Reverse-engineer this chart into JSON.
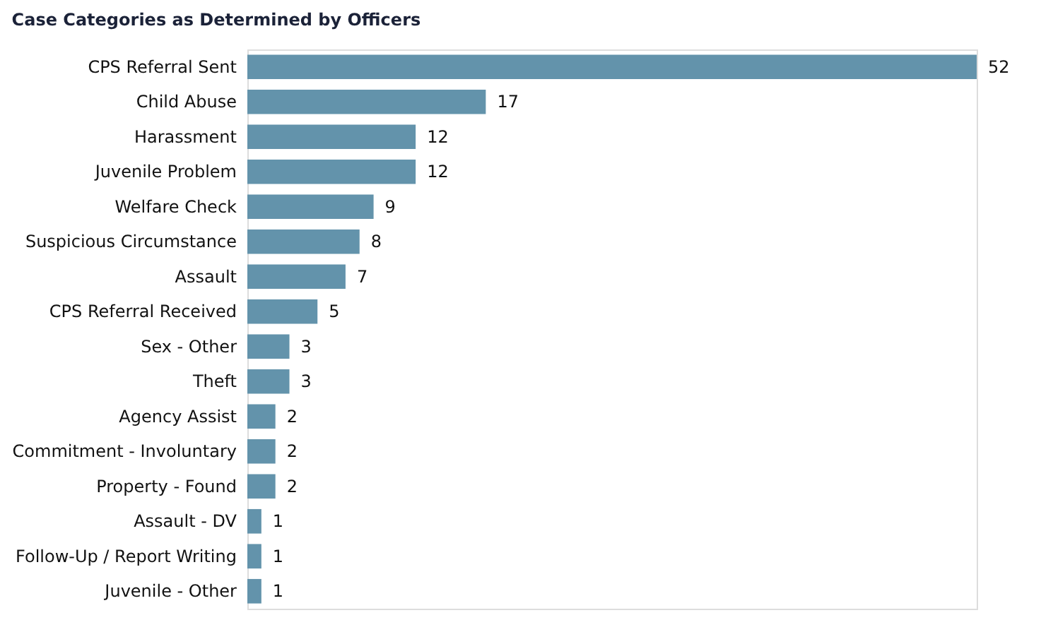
{
  "chart_data": {
    "type": "bar",
    "orientation": "horizontal",
    "title": "Case Categories as Determined by Officers",
    "categories": [
      "CPS Referral Sent",
      "Child Abuse",
      "Harassment",
      "Juvenile Problem",
      "Welfare Check",
      "Suspicious Circumstance",
      "Assault",
      "CPS Referral Received",
      "Sex - Other",
      "Theft",
      "Agency Assist",
      "Commitment - Involuntary",
      "Property - Found",
      "Assault - DV",
      "Follow-Up / Report Writing",
      "Juvenile - Other"
    ],
    "values": [
      52,
      17,
      12,
      12,
      9,
      8,
      7,
      5,
      3,
      3,
      2,
      2,
      2,
      1,
      1,
      1
    ],
    "color": "#6393ab",
    "data_labels": true,
    "grid": false,
    "tick_labels": "y"
  }
}
